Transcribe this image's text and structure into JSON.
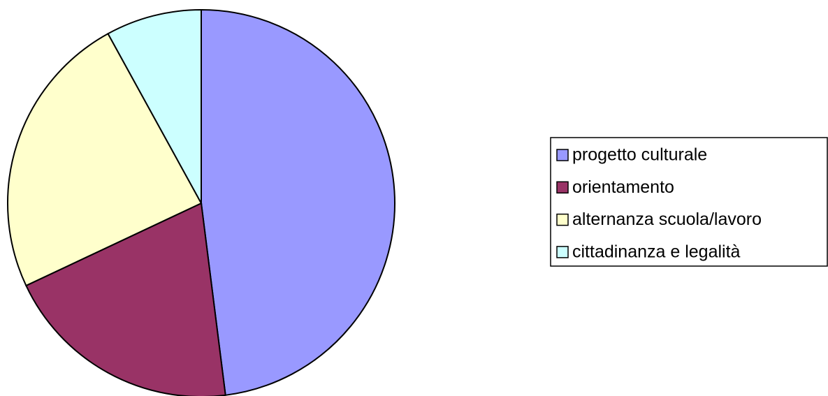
{
  "chart_data": {
    "type": "pie",
    "categories": [
      "progetto culturale",
      "orientamento",
      "alternanza scuola/lavoro",
      "cittadinanza e legalità"
    ],
    "values": [
      48,
      20,
      24,
      8
    ],
    "colors": [
      "#9999ff",
      "#993366",
      "#ffffcc",
      "#ccffff"
    ],
    "legend": "right"
  }
}
